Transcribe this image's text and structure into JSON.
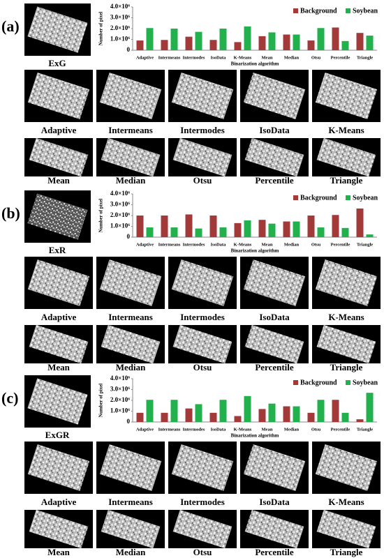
{
  "panels": [
    {
      "label": "(a)",
      "index_caption": "ExG",
      "image_captions": [
        "Adaptive",
        "Intermeans",
        "Intermodes",
        "IsoData",
        "K-Means",
        "Mean",
        "Median",
        "Otsu",
        "Percentile",
        "Triangle"
      ]
    },
    {
      "label": "(b)",
      "index_caption": "ExR",
      "image_captions": [
        "Adaptive",
        "Intermeans",
        "Intermodes",
        "IsoData",
        "K-Means",
        "Mean",
        "Median",
        "Otsu",
        "Percentile",
        "Triangle"
      ]
    },
    {
      "label": "(c)",
      "index_caption": "ExGR",
      "image_captions": [
        "Adaptive",
        "Intermeans",
        "Intermodes",
        "IsoData",
        "K-Means",
        "Mean",
        "Median",
        "Otsu",
        "Percentile",
        "Triangle"
      ]
    }
  ],
  "chart_data": [
    {
      "type": "bar",
      "xlabel": "Binarization algorithm",
      "ylabel": "Number of pixel",
      "legend": "upper right",
      "categories": [
        "Adaptive",
        "Intermeans",
        "Intermodes",
        "IsoData",
        "K-Means",
        "Mean",
        "Median",
        "Otsu",
        "Percentile",
        "Triangle"
      ],
      "series": [
        {
          "name": "Background",
          "color": "#a33a3a",
          "values": [
            900000,
            950000,
            1250000,
            950000,
            750000,
            1300000,
            1450000,
            900000,
            2100000,
            1600000
          ]
        },
        {
          "name": "Soybean",
          "color": "#22b14c",
          "values": [
            2050000,
            2000000,
            1700000,
            2000000,
            2200000,
            1650000,
            1450000,
            2050000,
            850000,
            1350000
          ]
        }
      ],
      "ylim": [
        0,
        4000000
      ],
      "yticks": [
        0,
        {
          "value": 1000000,
          "label": "1.0×10⁶"
        },
        {
          "value": 2000000,
          "label": "2.0×10⁶"
        },
        {
          "value": 3000000,
          "label": "3.0×10⁶"
        },
        {
          "value": 4000000,
          "label": "4.0×10⁶"
        }
      ]
    },
    {
      "type": "bar",
      "xlabel": "Binarization algorithm",
      "ylabel": "Number of pixel",
      "legend": "upper right",
      "categories": [
        "Adaptive",
        "Intermeans",
        "Intermodes",
        "IsoData",
        "K-Means",
        "Mean",
        "Median",
        "Otsu",
        "Percentile",
        "Triangle"
      ],
      "series": [
        {
          "name": "Background",
          "color": "#a33a3a",
          "values": [
            2000000,
            2000000,
            2100000,
            2000000,
            1300000,
            1600000,
            1450000,
            2000000,
            2050000,
            2650000
          ]
        },
        {
          "name": "Soybean",
          "color": "#22b14c",
          "values": [
            900000,
            900000,
            800000,
            900000,
            1550000,
            1250000,
            1450000,
            900000,
            850000,
            250000
          ]
        }
      ],
      "ylim": [
        0,
        4000000
      ],
      "yticks": [
        0,
        {
          "value": 1000000,
          "label": "1.0×10⁶"
        },
        {
          "value": 2000000,
          "label": "2.0×10⁶"
        },
        {
          "value": 3000000,
          "label": "3.0×10⁶"
        },
        {
          "value": 4000000,
          "label": "4.0×10⁶"
        }
      ]
    },
    {
      "type": "bar",
      "xlabel": "Binarization algorithm",
      "ylabel": "Number of pixel",
      "legend": "upper right",
      "categories": [
        "Adaptive",
        "Intermeans",
        "Intermodes",
        "IsoData",
        "K-Means",
        "Mean",
        "Median",
        "Otsu",
        "Percentile",
        "Triangle"
      ],
      "series": [
        {
          "name": "Background",
          "color": "#a33a3a",
          "values": [
            850000,
            850000,
            1250000,
            850000,
            550000,
            1200000,
            1450000,
            850000,
            2050000,
            250000
          ]
        },
        {
          "name": "Soybean",
          "color": "#22b14c",
          "values": [
            2050000,
            2050000,
            1650000,
            2050000,
            2400000,
            1700000,
            1450000,
            2050000,
            850000,
            2700000
          ]
        }
      ],
      "ylim": [
        0,
        4000000
      ],
      "yticks": [
        0,
        {
          "value": 1000000,
          "label": "1.0×10⁶"
        },
        {
          "value": 2000000,
          "label": "2.0×10⁶"
        },
        {
          "value": 3000000,
          "label": "3.0×10⁶"
        },
        {
          "value": 4000000,
          "label": "4.0×10⁶"
        }
      ]
    }
  ]
}
